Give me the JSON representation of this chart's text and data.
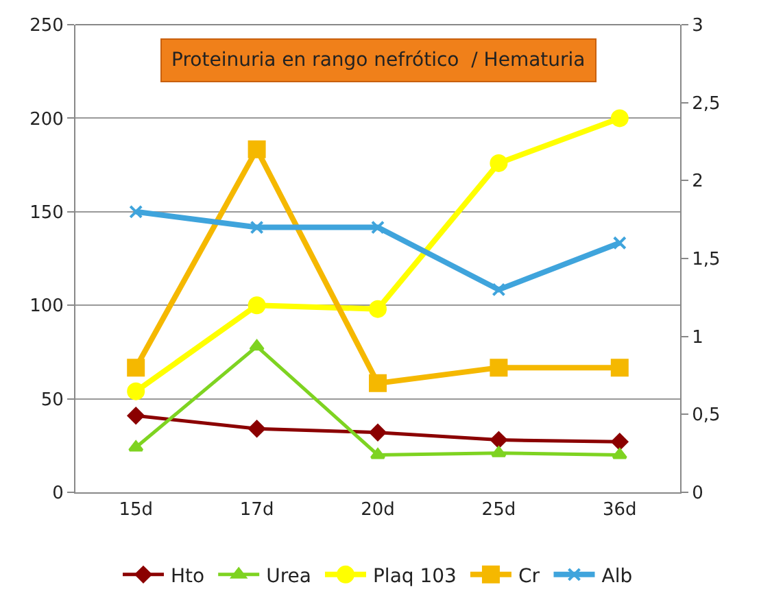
{
  "chart_data": {
    "type": "line",
    "title": "Proteinuria en rango nefrótico  / Hematuria",
    "categories": [
      "15d",
      "17d",
      "20d",
      "25d",
      "36d"
    ],
    "series": [
      {
        "name": "Hto",
        "color": "#8b0000",
        "marker": "diamond",
        "values": [
          41,
          34,
          32,
          28,
          27
        ]
      },
      {
        "name": "Urea",
        "color": "#7ed321",
        "marker": "triangle",
        "values": [
          24,
          78,
          20,
          21,
          20
        ]
      },
      {
        "name": "Plaq 103",
        "color": "#ffff00",
        "marker": "circle",
        "values": [
          54,
          100,
          98,
          176,
          200
        ]
      },
      {
        "name": "Cr",
        "color": "#f5b800",
        "marker": "square",
        "axis": "y2",
        "values": [
          0.8,
          2.2,
          0.7,
          0.8,
          0.8
        ]
      },
      {
        "name": "Alb",
        "color": "#3fa4dc",
        "marker": "cross",
        "axis": "y2",
        "values": [
          1.8,
          1.7,
          1.7,
          1.3,
          1.6
        ]
      }
    ],
    "ylim": [
      0,
      250
    ],
    "yticks": [
      0,
      50,
      100,
      150,
      200,
      250
    ],
    "y2lim": [
      0,
      3
    ],
    "y2ticks": [
      0,
      {
        "value": 0.5,
        "label": "0,5"
      },
      1,
      {
        "value": 1.5,
        "label": "1,5"
      },
      2,
      {
        "value": 2.5,
        "label": "2,5"
      },
      3
    ],
    "grid": "y",
    "legend": "bottom"
  }
}
